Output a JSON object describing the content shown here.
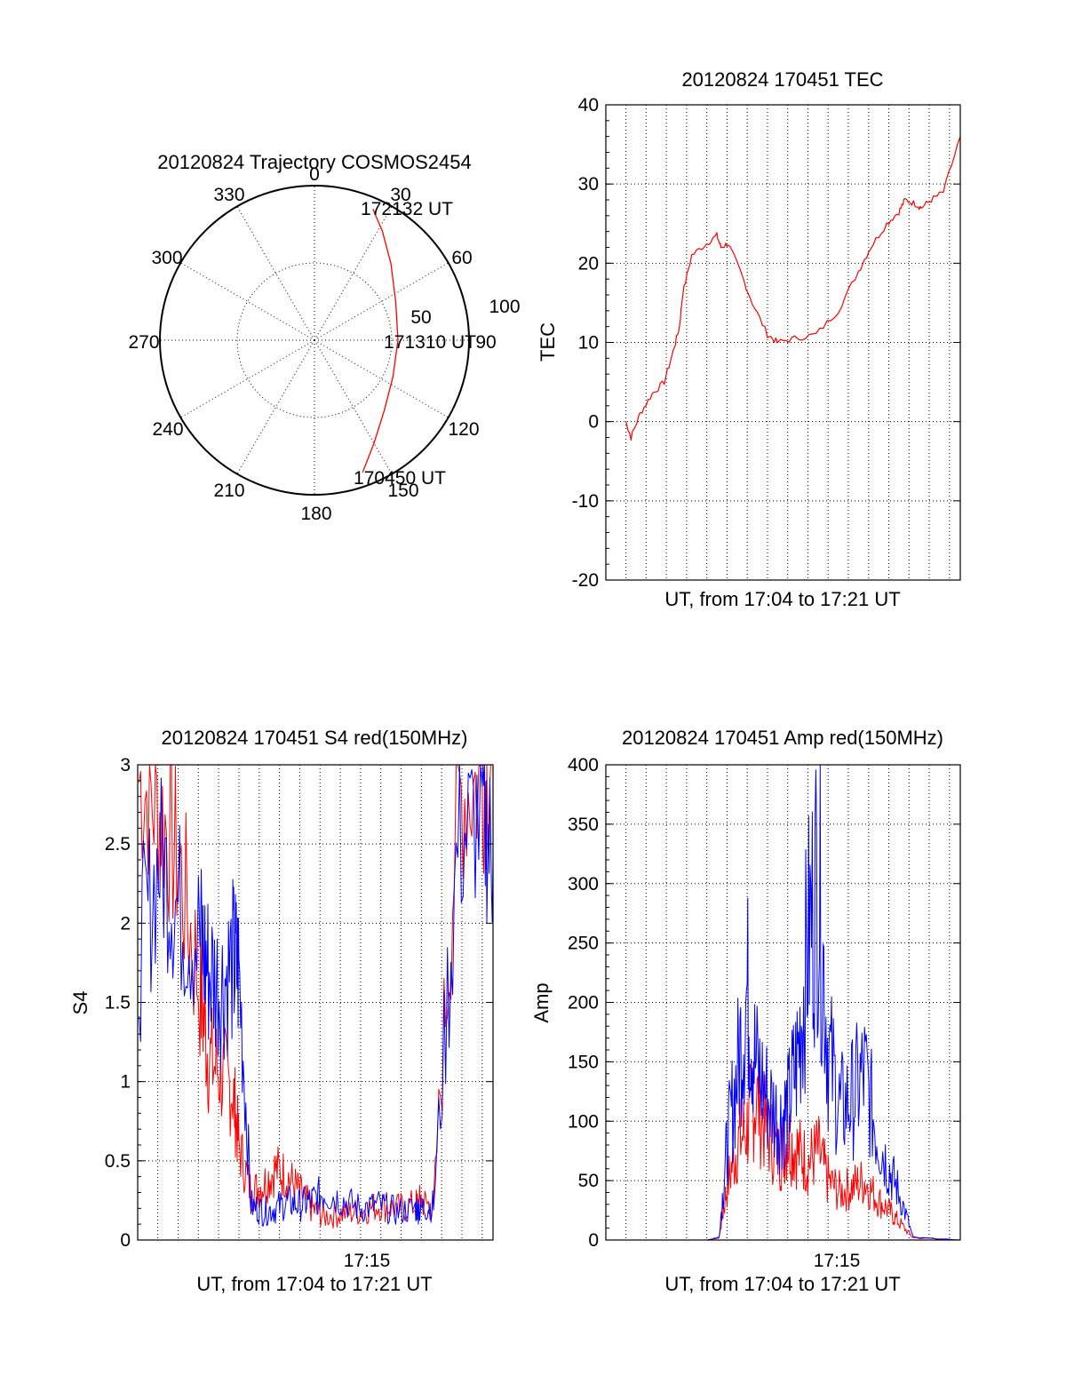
{
  "chart_data": [
    {
      "type": "polar",
      "title": "20120824 Trajectory COSMOS2454",
      "azimuth_labels": [
        "0",
        "30",
        "60",
        "90",
        "120",
        "150",
        "180",
        "210",
        "240",
        "270",
        "300",
        "330"
      ],
      "radius_labels": [
        "50",
        "100"
      ],
      "series": [
        {
          "color": "#ff0000",
          "points": [
            {
              "az": 160,
              "r": 91
            },
            {
              "az": 150,
              "r": 77
            },
            {
              "az": 135,
              "r": 64
            },
            {
              "az": 115,
              "r": 56
            },
            {
              "az": 90,
              "r": 54
            },
            {
              "az": 65,
              "r": 58
            },
            {
              "az": 45,
              "r": 70
            },
            {
              "az": 32,
              "r": 83
            },
            {
              "az": 24,
              "r": 93
            }
          ]
        }
      ],
      "annotations": [
        {
          "text": "172132 UT"
        },
        {
          "text": "171310 UT"
        },
        {
          "text": "170450 UT"
        }
      ]
    },
    {
      "type": "line",
      "title": "20120824 170451 TEC",
      "xlabel": "UT, from 17:04 to 17:21 UT",
      "ylabel": "TEC",
      "xlim": [
        17.0668,
        17.3589
      ],
      "ylim": [
        -20,
        40
      ],
      "yticks": [
        "40",
        "30",
        "20",
        "10",
        "0",
        "-10",
        "-20"
      ],
      "grid": true,
      "series": [
        {
          "color": "#ff0000",
          "x": [
            17.0833,
            17.0875,
            17.095,
            17.105,
            17.115,
            17.1225,
            17.1275,
            17.13,
            17.1375,
            17.15,
            17.1583,
            17.1617,
            17.1675,
            17.1775,
            17.1875,
            17.2,
            17.2083,
            17.2225,
            17.24,
            17.2583,
            17.275,
            17.285,
            17.2983,
            17.3083,
            17.3133,
            17.3217,
            17.3267,
            17.335,
            17.345,
            17.3589
          ],
          "y": [
            0,
            -2,
            1,
            3.5,
            5,
            9,
            12,
            16,
            21,
            22.5,
            23.5,
            22,
            22.5,
            19,
            15,
            11,
            10,
            10.5,
            11,
            14,
            19,
            22,
            25,
            26.5,
            28,
            27.5,
            27,
            28,
            29,
            36
          ]
        }
      ]
    },
    {
      "type": "line",
      "title": "20120824 170451 S4 red(150MHz)",
      "xlabel": "UT, from 17:04 to 17:21 UT",
      "ylabel": "S4",
      "xlim": [
        17.0668,
        17.3589
      ],
      "ylim": [
        0,
        3
      ],
      "xticks": [
        {
          "x": 17.25,
          "label": "17:15"
        }
      ],
      "yticks": [
        "3",
        "2.5",
        "2",
        "1.5",
        "1",
        "0.5",
        "0"
      ],
      "grid": true,
      "series": [
        {
          "color": "#ff0000",
          "x": [
            17.068,
            17.085,
            17.1,
            17.118,
            17.125,
            17.135,
            17.145,
            17.15,
            17.16,
            17.17,
            17.18,
            17.19,
            17.2,
            17.21,
            17.22,
            17.235,
            17.25,
            17.265,
            17.28,
            17.295,
            17.3,
            17.31,
            17.33,
            17.35,
            17.3589
          ],
          "y": [
            2.9,
            2.7,
            2.4,
            1.6,
            1.15,
            1.05,
            0.95,
            0.6,
            0.3,
            0.35,
            0.45,
            0.4,
            0.3,
            0.2,
            0.15,
            0.17,
            0.18,
            0.22,
            0.2,
            0.22,
            0.25,
            0.2,
            2.8,
            2.9,
            3
          ]
        },
        {
          "color": "#0000ff",
          "x": [
            17.068,
            17.085,
            17.1,
            17.118,
            17.125,
            17.135,
            17.145,
            17.15,
            17.16,
            17.17,
            17.18,
            17.19,
            17.2,
            17.21,
            17.22,
            17.235,
            17.25,
            17.265,
            17.28,
            17.295,
            17.3,
            17.31,
            17.33,
            17.35,
            17.3589
          ],
          "y": [
            1.8,
            2.4,
            2.1,
            1.9,
            1.7,
            1.6,
            1.75,
            1.7,
            0.22,
            0.18,
            0.2,
            0.24,
            0.22,
            0.25,
            0.3,
            0.25,
            0.2,
            0.22,
            0.18,
            0.2,
            0.2,
            0.22,
            2.5,
            2.7,
            2.4
          ]
        }
      ]
    },
    {
      "type": "line",
      "title": "20120824 170451 Amp red(150MHz)",
      "xlabel": "UT, from 17:04 to 17:21 UT",
      "ylabel": "Amp",
      "xlim": [
        17.0668,
        17.3589
      ],
      "ylim": [
        0,
        400
      ],
      "xticks": [
        {
          "x": 17.25,
          "label": "17:15"
        }
      ],
      "yticks": [
        "400",
        "350",
        "300",
        "250",
        "200",
        "150",
        "100",
        "50",
        "0"
      ],
      "grid": true,
      "series": [
        {
          "color": "#ff0000",
          "x": [
            17.0833,
            17.15,
            17.16,
            17.1667,
            17.175,
            17.1833,
            17.19,
            17.2,
            17.21,
            17.2167,
            17.225,
            17.2333,
            17.2417,
            17.25,
            17.26,
            17.27,
            17.28,
            17.29,
            17.3,
            17.3083,
            17.32,
            17.3589
          ],
          "y": [
            0,
            0,
            2,
            45,
            80,
            95,
            120,
            90,
            70,
            85,
            75,
            65,
            75,
            50,
            40,
            45,
            50,
            35,
            25,
            15,
            2,
            0
          ]
        },
        {
          "color": "#0000ff",
          "x": [
            17.0833,
            17.15,
            17.16,
            17.1667,
            17.175,
            17.1833,
            17.19,
            17.2,
            17.21,
            17.2167,
            17.225,
            17.2333,
            17.2417,
            17.25,
            17.26,
            17.27,
            17.28,
            17.29,
            17.3,
            17.3083,
            17.32,
            17.3589
          ],
          "y": [
            0,
            0,
            2,
            80,
            140,
            210,
            150,
            120,
            100,
            110,
            155,
            250,
            310,
            160,
            110,
            120,
            140,
            90,
            60,
            40,
            2,
            0
          ]
        }
      ]
    }
  ]
}
